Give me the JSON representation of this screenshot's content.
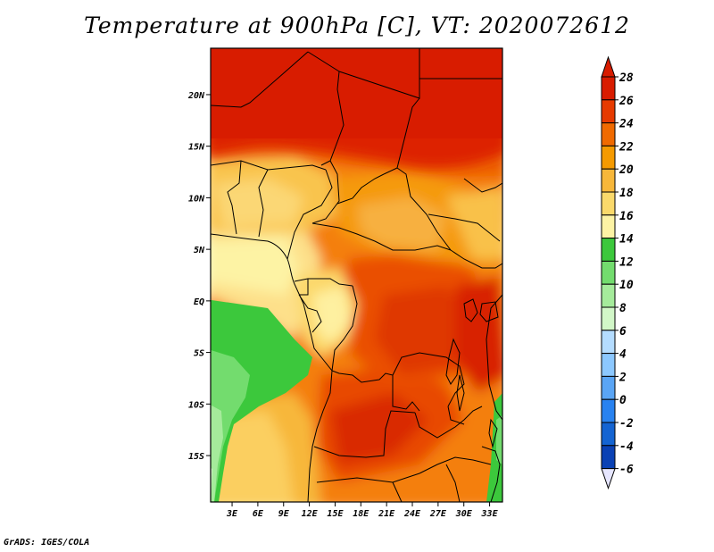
{
  "title": "Temperature at 900hPa [C], VT: 2020072612",
  "credit": "GrADS: IGES/COLA",
  "map": {
    "lat_labels": [
      "20N",
      "15N",
      "10N",
      "5N",
      "EQ",
      "5S",
      "10S",
      "15S"
    ],
    "lon_labels": [
      "3E",
      "6E",
      "9E",
      "12E",
      "15E",
      "18E",
      "21E",
      "24E",
      "27E",
      "30E",
      "33E"
    ],
    "lat_range": [
      -19.5,
      24.5
    ],
    "lon_range": [
      0.5,
      34.5
    ]
  },
  "colorbar": {
    "labels": [
      "28",
      "26",
      "24",
      "22",
      "20",
      "18",
      "16",
      "14",
      "12",
      "10",
      "8",
      "6",
      "4",
      "2",
      "0",
      "-2",
      "-4",
      "-6"
    ],
    "colors": [
      "#d81c00",
      "#e63a00",
      "#f06a00",
      "#f59a00",
      "#f7b73a",
      "#fad96b",
      "#fdf3a4",
      "#3cc83c",
      "#73dc6e",
      "#a5eb9b",
      "#d2f7c8",
      "#b4dcff",
      "#8cc8ff",
      "#5aa5f5",
      "#2882f0",
      "#1464d2",
      "#0a41b4",
      "#00166e"
    ],
    "over_color": "#d81c00",
    "under_color": "#e6e6ff"
  }
}
